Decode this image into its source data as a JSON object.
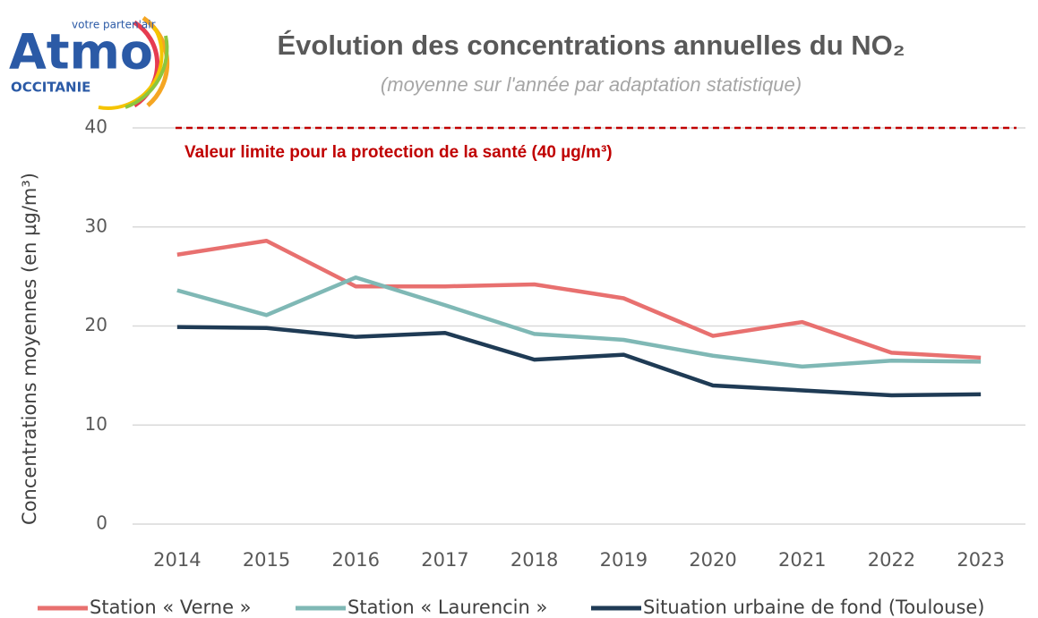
{
  "logo": {
    "tagline": "votre parten'air",
    "name": "Atmo",
    "region": "OCCITANIE"
  },
  "chart_data": {
    "type": "line",
    "title": "Évolution des concentrations annuelles du NO₂",
    "subtitle": "(moyenne sur l'année par adaptation statistique)",
    "y_label": "Concentrations moyennes (en µg/m³)",
    "categories": [
      "2014",
      "2015",
      "2016",
      "2017",
      "2018",
      "2019",
      "2020",
      "2021",
      "2022",
      "2023"
    ],
    "series": [
      {
        "name": "Station « Verne »",
        "color": "#e8706f",
        "values": [
          27.2,
          28.6,
          24.0,
          24.0,
          24.2,
          22.8,
          19.0,
          20.4,
          17.3,
          16.8
        ]
      },
      {
        "name": "Station « Laurencin »",
        "color": "#7fb8b5",
        "values": [
          23.6,
          21.1,
          24.9,
          22.1,
          19.2,
          18.6,
          17.0,
          15.9,
          16.5,
          16.4
        ]
      },
      {
        "name": "Situation urbaine de fond (Toulouse)",
        "color": "#1f3b55",
        "values": [
          19.9,
          19.8,
          18.9,
          19.3,
          16.6,
          17.1,
          14.0,
          13.5,
          13.0,
          13.1
        ]
      }
    ],
    "reference_line": {
      "value": 40,
      "label": "Valeur limite pour la protection de la santé (40 µg/m³)",
      "color": "#c00000"
    },
    "ylim": [
      0,
      40
    ],
    "yticks": [
      0,
      10,
      20,
      30,
      40
    ],
    "grid": true,
    "legend": "bottom"
  }
}
